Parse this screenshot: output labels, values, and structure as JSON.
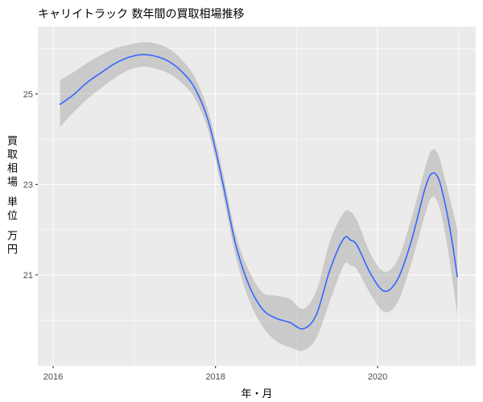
{
  "chart_data": {
    "type": "line",
    "title": "キャリイトラック 数年間の買取相場推移",
    "xlabel": "年・月",
    "ylabel": "買取相場 単位 万円",
    "xlim": [
      "2015-10-24",
      "2021-03-18"
    ],
    "ylim": [
      18.99,
      26.49
    ],
    "x_ticks": [
      {
        "date": "2016-01-01",
        "label": "2016"
      },
      {
        "date": "2018-01-01",
        "label": "2018"
      },
      {
        "date": "2020-01-01",
        "label": "2020"
      }
    ],
    "y_ticks": [
      21,
      23,
      25
    ],
    "grid": true,
    "x": [
      "2016-02-01",
      "2016-04-01",
      "2016-06-01",
      "2016-08-01",
      "2016-10-01",
      "2016-12-01",
      "2017-02-01",
      "2017-04-01",
      "2017-06-01",
      "2017-08-01",
      "2017-10-01",
      "2017-12-01",
      "2018-02-01",
      "2018-04-01",
      "2018-06-01",
      "2018-08-01",
      "2018-10-01",
      "2018-12-01",
      "2019-02-01",
      "2019-04-01",
      "2019-06-01",
      "2019-08-01",
      "2019-09-01",
      "2019-10-01",
      "2019-12-01",
      "2020-02-01",
      "2020-04-01",
      "2020-06-01",
      "2020-08-01",
      "2020-09-01",
      "2020-10-01",
      "2020-11-01",
      "2020-12-01",
      "2020-12-25"
    ],
    "series": [
      {
        "values": [
          24.77,
          24.98,
          25.25,
          25.46,
          25.66,
          25.8,
          25.87,
          25.84,
          25.73,
          25.5,
          25.12,
          24.38,
          23.08,
          21.69,
          20.77,
          20.24,
          20.04,
          19.95,
          19.81,
          20.13,
          21.12,
          21.8,
          21.77,
          21.65,
          21.02,
          20.64,
          20.91,
          21.75,
          22.9,
          23.24,
          23.13,
          22.55,
          21.75,
          20.96
        ],
        "lower": [
          24.27,
          24.59,
          24.88,
          25.12,
          25.34,
          25.52,
          25.6,
          25.57,
          25.46,
          25.25,
          24.89,
          24.16,
          22.85,
          21.43,
          20.45,
          19.86,
          19.54,
          19.4,
          19.33,
          19.61,
          20.43,
          21.21,
          21.21,
          21.11,
          20.57,
          20.18,
          20.4,
          21.25,
          22.32,
          22.72,
          22.56,
          21.89,
          20.95,
          20.11
        ],
        "upper": [
          25.3,
          25.48,
          25.68,
          25.85,
          26.0,
          26.08,
          26.14,
          26.12,
          26.01,
          25.76,
          25.36,
          24.59,
          23.31,
          21.92,
          21.09,
          20.61,
          20.54,
          20.47,
          20.25,
          20.66,
          21.75,
          22.37,
          22.39,
          22.19,
          21.46,
          21.07,
          21.34,
          22.24,
          23.35,
          23.76,
          23.65,
          23.1,
          22.49,
          22.01
        ]
      }
    ],
    "colors": {
      "background": "#FFFFFF",
      "panel": "#EBEBEB",
      "grid": "#FFFFFF",
      "band": "#999999",
      "line": "#3366FF",
      "tick": "#333333",
      "tick_text": "#4D4D4D"
    }
  }
}
